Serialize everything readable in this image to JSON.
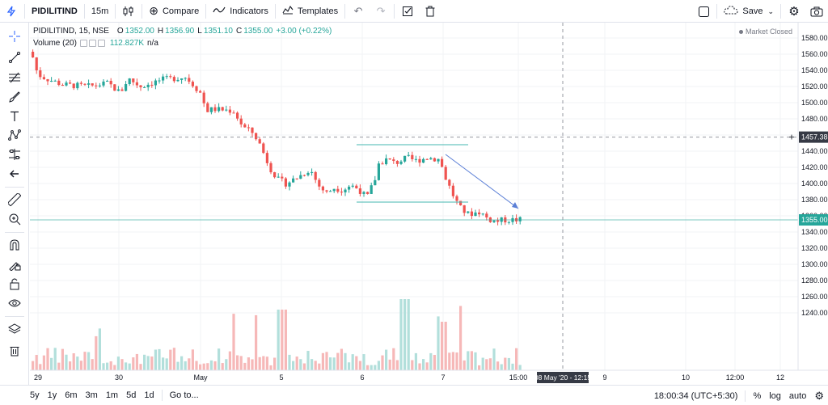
{
  "toolbar": {
    "symbol": "PIDILITIND",
    "interval": "15m",
    "compare_label": "Compare",
    "indicators_label": "Indicators",
    "templates_label": "Templates",
    "save_label": "Save"
  },
  "legend": {
    "title": "PIDILITIND, 15, NSE",
    "open_key": "O",
    "open": "1352.00",
    "high_key": "H",
    "high": "1356.90",
    "low_key": "L",
    "low": "1351.10",
    "close_key": "C",
    "close": "1355.00",
    "change": "+3.00 (+0.22%)",
    "volume_title": "Volume (20)",
    "volume_value": "112.827K",
    "volume_ma": "n/a",
    "market_status": "Market Closed"
  },
  "price_axis": {
    "ticks": [
      "1580.00",
      "1560.00",
      "1540.00",
      "1520.00",
      "1500.00",
      "1480.00",
      "1460.00",
      "1440.00",
      "1420.00",
      "1400.00",
      "1380.00",
      "1360.00",
      "1340.00",
      "1320.00",
      "1300.00",
      "1280.00",
      "1260.00",
      "1240.00"
    ],
    "crosshair_label": "1457.38",
    "last_price_label": "1355.00"
  },
  "time_axis": {
    "ticks": [
      "29",
      "30",
      "May",
      "5",
      "6",
      "7",
      "15:00",
      "9",
      "10",
      "12:00",
      "12"
    ],
    "crosshair_label": "08 May '20 - 12:15"
  },
  "bottom": {
    "ranges": [
      "5y",
      "1y",
      "6m",
      "3m",
      "1m",
      "5d",
      "1d"
    ],
    "goto_label": "Go to...",
    "clock": "18:00:34 (UTC+5:30)",
    "percent_label": "%",
    "log_label": "log",
    "auto_label": "auto"
  },
  "colors": {
    "up": "#26a69a",
    "down": "#ef5350",
    "accent": "#2962ff",
    "vol_up": "#b2dfdb",
    "vol_down": "#f6b8b8"
  },
  "icons": {
    "left_toolbar": [
      "crosshair-icon",
      "trend-line-icon",
      "fib-icon",
      "brush-icon",
      "text-icon",
      "pattern-icon",
      "prediction-icon",
      "back-icon",
      "ruler-icon",
      "zoom-icon",
      "magnet-icon",
      "lock-drawing-icon",
      "lock-icon",
      "eye-icon",
      "layers-icon",
      "trash-icon"
    ]
  }
}
